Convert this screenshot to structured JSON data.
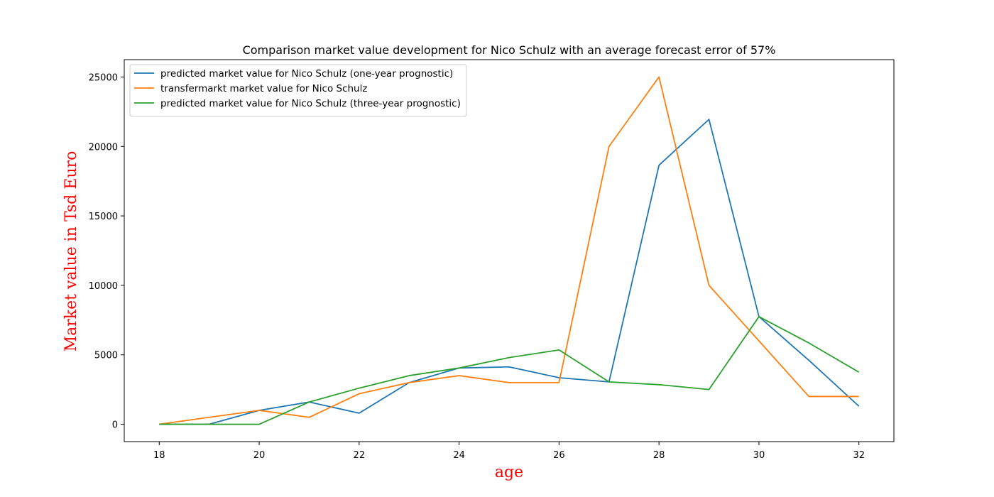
{
  "chart_data": {
    "type": "line",
    "title": "Comparison market value development for Nico Schulz with an average forecast error of 57%",
    "xlabel": "age",
    "ylabel": "Market value in Tsd Euro",
    "axis_label_color": "#ff0000",
    "xlim": [
      17.3,
      32.7
    ],
    "ylim": [
      -1250,
      26250
    ],
    "xticks": [
      18,
      20,
      22,
      24,
      26,
      28,
      30,
      32
    ],
    "yticks": [
      0,
      5000,
      10000,
      15000,
      20000,
      25000
    ],
    "grid": false,
    "legend_position": "top-left",
    "x": [
      18,
      19,
      20,
      21,
      22,
      23,
      24,
      25,
      26,
      27,
      28,
      29,
      30,
      31,
      32
    ],
    "series": [
      {
        "name": "predicted market value for Nico Schulz (one-year prognostic)",
        "color": "#1f77b4",
        "values": [
          0,
          0,
          1000,
          1600,
          800,
          3000,
          4050,
          4130,
          3350,
          3050,
          18650,
          21950,
          7750,
          4600,
          1300
        ]
      },
      {
        "name": "transfermarkt market value for Nico Schulz",
        "color": "#ff7f0e",
        "values": [
          0,
          500,
          1000,
          500,
          2200,
          3000,
          3500,
          3000,
          3000,
          20000,
          25000,
          10000,
          6000,
          2000,
          2000
        ]
      },
      {
        "name": "predicted market value for Nico Schulz (three-year prognostic)",
        "color": "#2ca02c",
        "values": [
          0,
          0,
          0,
          1600,
          2600,
          3500,
          4050,
          4800,
          5350,
          3050,
          2850,
          2500,
          7750,
          5850,
          3750
        ]
      }
    ]
  }
}
